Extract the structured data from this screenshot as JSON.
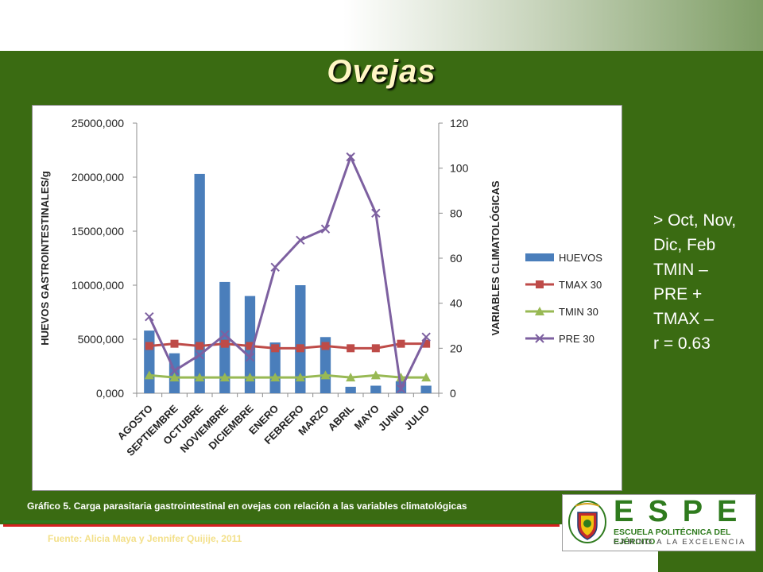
{
  "slide": {
    "title": "Ovejas",
    "notes": [
      "> Oct, Nov,",
      "Dic, Feb",
      "",
      "TMIN –",
      "PRE +",
      "TMAX –",
      "",
      "r = 0.63"
    ],
    "caption": "Gráfico 5. Carga parasitaria gastrointestinal en ovejas con relación a las variables climatológicas",
    "source": "Fuente: Alicia Maya y Jennifer Quijije, 2011",
    "logo": {
      "letters": "ESPE",
      "name": "ESCUELA POLITÉCNICA DEL EJÉRCITO",
      "motto": "CAMINO A LA EXCELENCIA"
    }
  },
  "colors": {
    "background_green": "#3a6b12",
    "title": "#fff6c4",
    "huevos": "#4a7ebb",
    "tmax": "#be4b48",
    "tmin": "#98b954",
    "pre": "#7d60a0"
  },
  "chart_data": {
    "type": "bar",
    "categories": [
      "AGOSTO",
      "SEPTIEMBRE",
      "OCTUBRE",
      "NOVIEMBRE",
      "DICIEMBRE",
      "ENERO",
      "FEBRERO",
      "MARZO",
      "ABRIL",
      "MAYO",
      "JUNIO",
      "JULIO"
    ],
    "ylabel": "HUEVOS GASTROINTESTINALES/g",
    "y2label": "VARIABLES CLIMATOLÓGICAS",
    "ylim": [
      0,
      25000
    ],
    "y2lim": [
      0,
      120
    ],
    "yticks": [
      "0,000",
      "5000,000",
      "10000,000",
      "15000,000",
      "20000,000",
      "25000,000"
    ],
    "y2ticks": [
      "0",
      "20",
      "40",
      "60",
      "80",
      "100",
      "120"
    ],
    "legend_position": "right",
    "grid": false,
    "series": [
      {
        "name": "HUEVOS",
        "type": "bar",
        "axis": "left",
        "values": [
          5800,
          3700,
          20300,
          10300,
          9000,
          4700,
          10000,
          5200,
          600,
          700,
          1100,
          700
        ]
      },
      {
        "name": "TMAX 30",
        "type": "line",
        "marker": "square",
        "axis": "right",
        "values": [
          21,
          22,
          21,
          22,
          21,
          20,
          20,
          21,
          20,
          20,
          22,
          22
        ]
      },
      {
        "name": "TMIN 30",
        "type": "line",
        "marker": "triangle",
        "axis": "right",
        "values": [
          8,
          7,
          7,
          7,
          7,
          7,
          7,
          8,
          7,
          8,
          7,
          7
        ]
      },
      {
        "name": "PRE 30",
        "type": "line",
        "marker": "x",
        "axis": "right",
        "values": [
          34,
          10,
          17,
          26,
          16,
          56,
          68,
          73,
          105,
          80,
          2,
          25
        ]
      }
    ]
  }
}
